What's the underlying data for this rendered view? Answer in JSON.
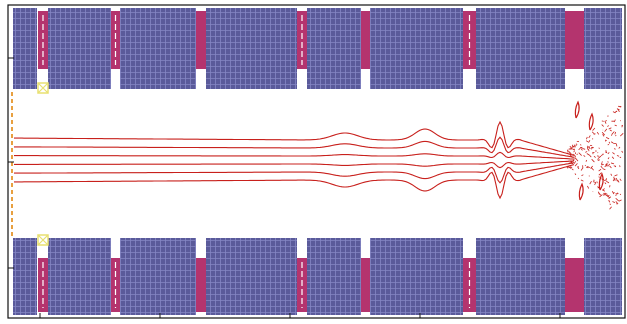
{
  "colors": {
    "background": "#ffffff",
    "frame": "#111111",
    "magnet": "#5a5a9a",
    "magnet_grid": "#7e80bf",
    "pole": "#b4346e",
    "pole_slot": "#ffffff",
    "trajectory": "#c8201c",
    "marker": "#e8e070",
    "source": "#e8a040"
  },
  "icons": {
    "marker": "square-cross-marker",
    "source": "dashed-source-line"
  },
  "diagram": {
    "kind": "magnet-array-beam-trajectories",
    "magnet_rows": [
      "top",
      "bottom"
    ],
    "magnet_count_per_row": 7,
    "trajectory_count": 6,
    "markers": 2
  }
}
